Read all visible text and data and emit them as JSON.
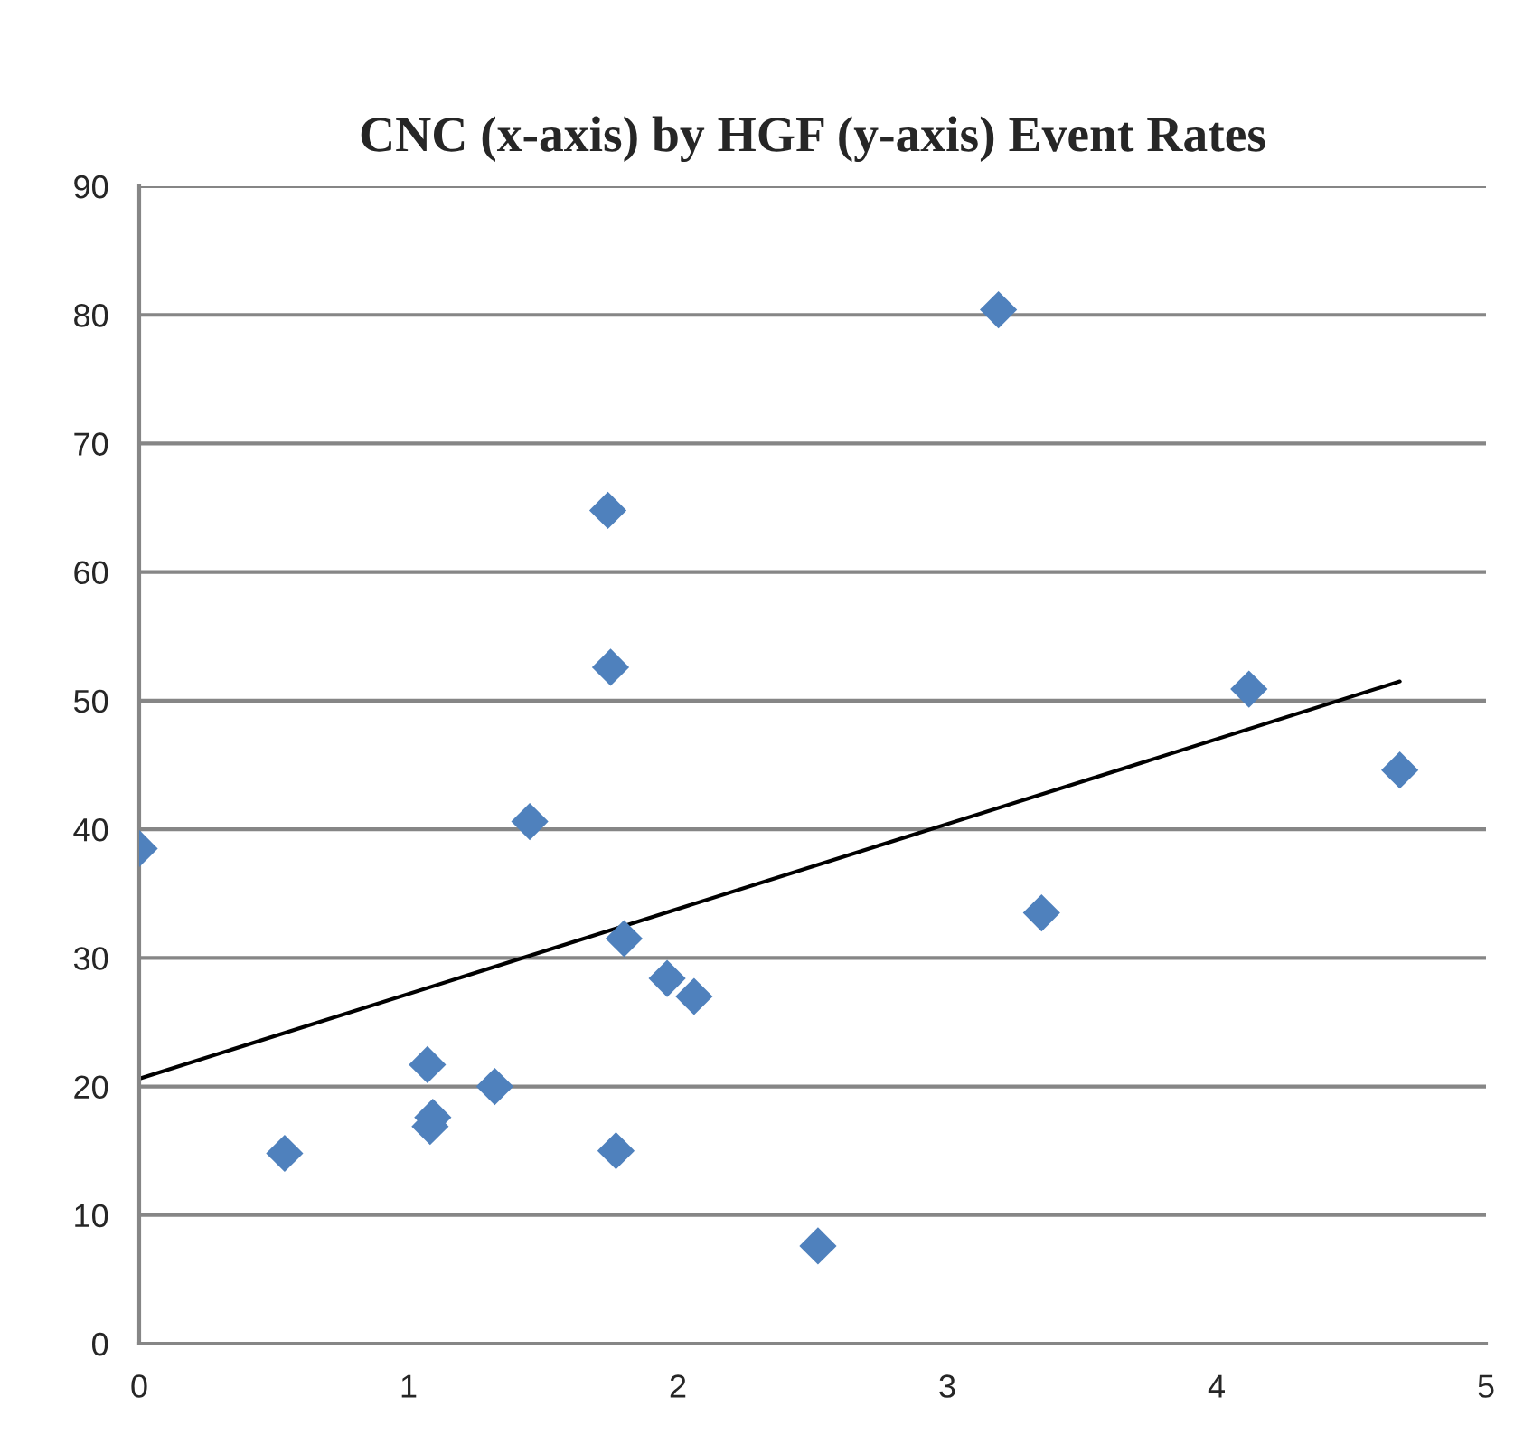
{
  "chart_data": {
    "type": "scatter",
    "title": "CNC (x-axis) by HGF (y-axis) Event Rates",
    "series": [
      {
        "color": "#4f81bd",
        "marker": "diamond",
        "x": [
          0,
          0.54,
          1.07,
          1.08,
          1.09,
          1.32,
          1.45,
          1.74,
          1.75,
          1.77,
          1.8,
          1.96,
          2.06,
          2.52,
          3.19,
          3.35,
          4.12,
          4.68
        ],
        "values": [
          38.5,
          14.8,
          21.7,
          16.9,
          17.6,
          20.0,
          40.6,
          64.8,
          52.6,
          15.0,
          31.5,
          28.4,
          27.0,
          7.6,
          80.4,
          33.5,
          50.9,
          44.6
        ]
      },
      {
        "type": "line",
        "color": "#000000",
        "line_style": "solid",
        "marker": "none",
        "x": [
          0,
          4.68
        ],
        "values": [
          20.6,
          51.5
        ]
      }
    ],
    "xlim": [
      0,
      5
    ],
    "xticks": [
      0,
      1,
      2,
      3,
      4,
      5
    ],
    "ylim": [
      0,
      90
    ],
    "yticks": [
      0,
      10,
      20,
      30,
      40,
      50,
      60,
      70,
      80,
      90
    ],
    "grid": "y"
  }
}
